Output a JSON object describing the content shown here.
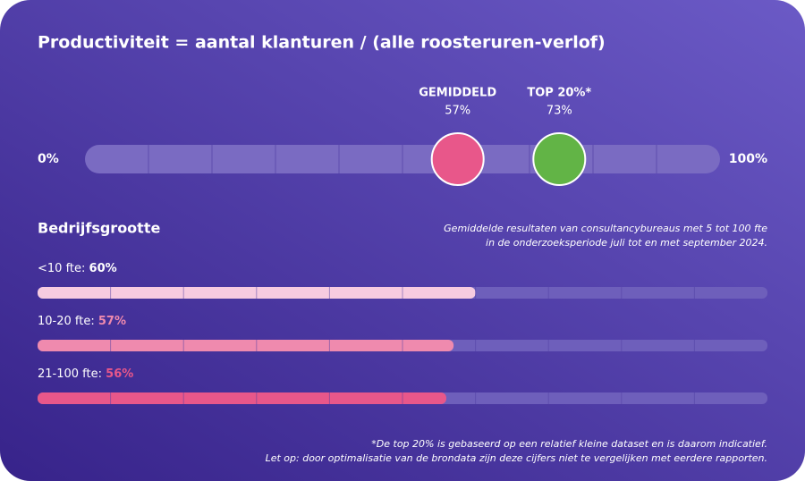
{
  "title": "Productiviteit = aantal klanturen / (alle roosteruren-verlof)",
  "chart_data": [
    {
      "type": "dot",
      "xlim": [
        0,
        100
      ],
      "xticks": [
        {
          "value": 0,
          "label": "0%"
        },
        {
          "value": 100,
          "label": "100%"
        }
      ],
      "series": [
        {
          "name": "GEMIDDELD",
          "color": "#e8578a",
          "values": [
            57
          ],
          "value_labels": [
            "57%"
          ]
        },
        {
          "name": "TOP 20%*",
          "color": "#62b446",
          "values": [
            73
          ],
          "value_labels": [
            "73%"
          ]
        }
      ]
    },
    {
      "type": "bar",
      "title": "Bedrijfsgrootte",
      "subtitle": [
        "Gemiddelde resultaten van consultancybureaus met 5 tot 100 fte",
        "in de onderzoeksperiode juli tot en met september 2024."
      ],
      "categories": [
        "<10 fte:",
        "10-20 fte:",
        "21-100 fte:"
      ],
      "values": [
        60,
        57,
        56
      ],
      "value_labels": [
        "60%",
        "57%",
        "56%"
      ],
      "colors": [
        "#f7cbe0",
        "#ef8aae",
        "#e8578a"
      ],
      "label_colors": [
        "#ffffff",
        "#ef8aae",
        "#e8578a"
      ],
      "xlim": [
        0,
        100
      ]
    }
  ],
  "footnote": [
    "*De top 20% is gebaseerd op een relatief kleine dataset en is daarom indicatief.",
    "Let op: door optimalisatie van de brondata zijn deze cijfers niet te vergelijken met eerdere rapporten."
  ]
}
